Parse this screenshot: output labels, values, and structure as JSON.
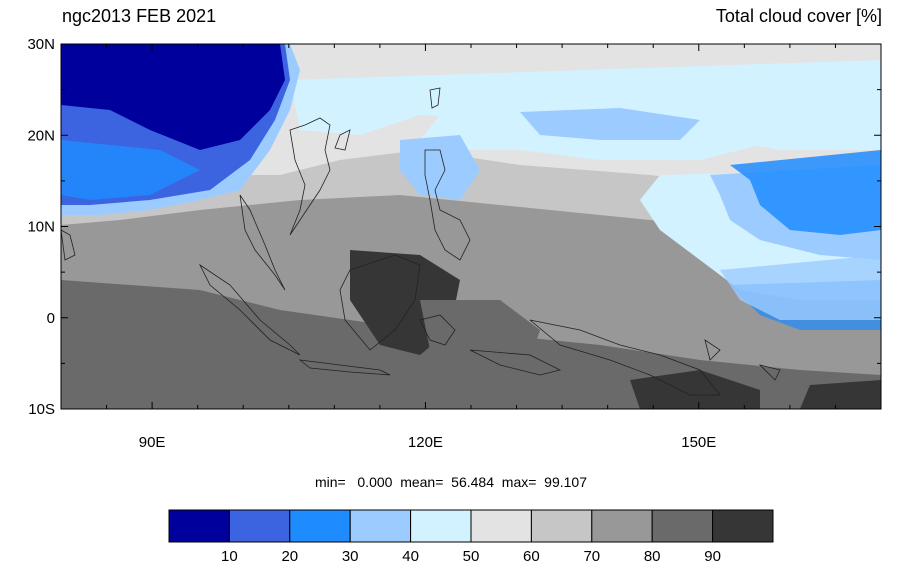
{
  "title_left": "ngc2013 FEB 2021",
  "title_right": "Total cloud cover [%]",
  "map": {
    "lon_range": [
      80,
      170
    ],
    "lat_range": [
      -10,
      30
    ],
    "lat_ticks": [
      {
        "value": 30,
        "label": "30N"
      },
      {
        "value": 20,
        "label": "20N"
      },
      {
        "value": 10,
        "label": "10N"
      },
      {
        "value": 0,
        "label": "0"
      },
      {
        "value": -10,
        "label": "10S"
      }
    ],
    "lon_ticks": [
      {
        "value": 90,
        "label": "90E"
      },
      {
        "value": 120,
        "label": "120E"
      },
      {
        "value": 150,
        "label": "150E"
      }
    ]
  },
  "stats": {
    "text": "min=   0.000  mean=  56.484  max=  99.107",
    "min": 0.0,
    "mean": 56.484,
    "max": 99.107
  },
  "colorbar": {
    "colors": [
      "#00009c",
      "#3c64e0",
      "#1e8cff",
      "#9cccff",
      "#d2f2ff",
      "#e3e3e3",
      "#c6c6c6",
      "#989898",
      "#6a6a6a",
      "#363636"
    ],
    "labels": [
      "10",
      "20",
      "30",
      "40",
      "50",
      "60",
      "70",
      "80",
      "90"
    ]
  }
}
